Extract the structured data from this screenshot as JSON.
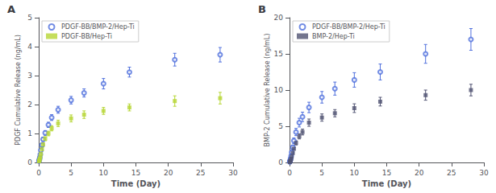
{
  "chart_data": [
    {
      "type": "scatter",
      "title": "A",
      "xlabel": "Time (Day)",
      "ylabel": "PDGF Cumulative Release (ng/mL)",
      "xlim": [
        0,
        30
      ],
      "ylim": [
        0,
        5
      ],
      "xticks": [
        0,
        5,
        10,
        15,
        20,
        25,
        30
      ],
      "yticks": [
        0,
        1,
        2,
        3,
        4,
        5
      ],
      "grid": false,
      "legend": "upper left",
      "x": [
        0.04,
        0.08,
        0.13,
        0.17,
        0.25,
        0.33,
        0.5,
        0.67,
        1.0,
        1.5,
        2,
        3,
        5,
        7,
        10,
        14,
        21,
        28
      ],
      "series": [
        {
          "name": "PDGF-BB/BMP-2/Hep-Ti",
          "marker": "open circle",
          "values": [
            0.05,
            0.08,
            0.12,
            0.18,
            0.28,
            0.42,
            0.6,
            0.8,
            1.02,
            1.3,
            1.55,
            1.82,
            2.15,
            2.4,
            2.72,
            3.12,
            3.55,
            3.72
          ],
          "yerr": [
            0.01,
            0.02,
            0.02,
            0.03,
            0.04,
            0.05,
            0.06,
            0.07,
            0.08,
            0.09,
            0.1,
            0.12,
            0.13,
            0.14,
            0.18,
            0.17,
            0.22,
            0.25
          ]
        },
        {
          "name": "PDGF-BB/Hep-Ti",
          "marker": "square",
          "values": [
            0.04,
            0.06,
            0.09,
            0.13,
            0.2,
            0.3,
            0.46,
            0.62,
            0.82,
            1.0,
            1.18,
            1.35,
            1.52,
            1.65,
            1.78,
            1.9,
            2.12,
            2.22
          ],
          "yerr": [
            0.01,
            0.01,
            0.02,
            0.02,
            0.03,
            0.04,
            0.05,
            0.06,
            0.07,
            0.08,
            0.09,
            0.11,
            0.12,
            0.13,
            0.12,
            0.12,
            0.18,
            0.2
          ]
        }
      ]
    },
    {
      "type": "scatter",
      "title": "B",
      "xlabel": "Time (Day)",
      "ylabel": "BMP-2 Cumulative Release (ng/mL)",
      "xlim": [
        0,
        30
      ],
      "ylim": [
        0,
        20
      ],
      "xticks": [
        0,
        5,
        10,
        15,
        20,
        25,
        30
      ],
      "yticks": [
        0,
        5,
        10,
        15,
        20
      ],
      "grid": false,
      "legend": "upper left",
      "x": [
        0.04,
        0.08,
        0.13,
        0.17,
        0.25,
        0.33,
        0.5,
        0.67,
        1.0,
        1.5,
        2,
        3,
        5,
        7,
        10,
        14,
        21,
        28
      ],
      "series": [
        {
          "name": "PDGF-BB/BMP-2/Hep-Ti",
          "marker": "open circle",
          "values": [
            0.1,
            0.2,
            0.35,
            0.55,
            0.9,
            1.4,
            2.1,
            3.0,
            4.2,
            5.5,
            6.3,
            7.6,
            9.0,
            10.2,
            11.4,
            12.5,
            15.0,
            17.0
          ],
          "yerr": [
            0.03,
            0.05,
            0.07,
            0.1,
            0.15,
            0.2,
            0.28,
            0.38,
            0.5,
            0.6,
            0.65,
            0.72,
            0.8,
            0.9,
            1.0,
            1.1,
            1.3,
            1.5
          ]
        },
        {
          "name": "BMP-2/Hep-Ti",
          "marker": "square",
          "values": [
            0.05,
            0.1,
            0.18,
            0.28,
            0.5,
            0.8,
            1.3,
            1.9,
            2.7,
            3.6,
            4.2,
            5.5,
            6.2,
            6.8,
            7.5,
            8.4,
            9.3,
            10.0
          ],
          "yerr": [
            0.02,
            0.03,
            0.04,
            0.05,
            0.07,
            0.1,
            0.14,
            0.2,
            0.28,
            0.35,
            0.4,
            0.5,
            0.5,
            0.5,
            0.6,
            0.6,
            0.7,
            0.8
          ]
        }
      ]
    }
  ]
}
